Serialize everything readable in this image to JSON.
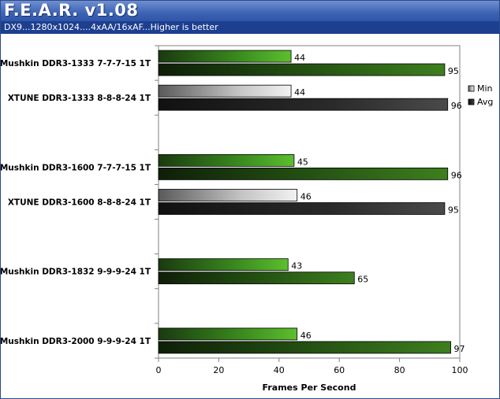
{
  "header": {
    "title": "F.E.A.R. v1.08",
    "subtitle": "DX9...1280x1024....4xAA/16xAF...Higher is better"
  },
  "colors": {
    "title_bar": "#3d63b5",
    "subtitle_bar": "#1d3f8f",
    "mushkin_bar": "#3a8a1e",
    "xtune_min_bar": "#d0d0d0",
    "xtune_avg_bar": "#2a2a2a"
  },
  "chart_data": {
    "type": "bar",
    "orientation": "horizontal",
    "title": "F.E.A.R. v1.08",
    "subtitle": "DX9...1280x1024....4xAA/16xAF...Higher is better",
    "xlabel": "Frames Per Second",
    "ylabel": "",
    "xlim": [
      0,
      100
    ],
    "x_ticks": [
      "0",
      "20",
      "40",
      "60",
      "80",
      "100"
    ],
    "grid": false,
    "legend": {
      "position": "right",
      "entries": [
        "Min",
        "Avg"
      ]
    },
    "categories": [
      "<Mushkin DDR3-1333 7-7-7-15 1T",
      "XTUNE DDR3-1333 8-8-8-24 1T",
      "",
      "<Mushkin DDR3-1600 7-7-7-15 1T",
      "XTUNE DDR3-1600 8-8-8-24 1T",
      "",
      "<Mushkin DDR3-1832 9-9-9-24 1T",
      "",
      "<Mushkin DDR3-2000 9-9-9-24 1T"
    ],
    "series": [
      {
        "name": "Min",
        "values": [
          44,
          44,
          null,
          45,
          46,
          null,
          43,
          null,
          46
        ]
      },
      {
        "name": "Avg",
        "values": [
          95,
          96,
          null,
          96,
          95,
          null,
          65,
          null,
          97
        ]
      }
    ],
    "bar_style": [
      "mushkin",
      "xtune",
      null,
      "mushkin",
      "xtune",
      null,
      "mushkin",
      null,
      "mushkin"
    ]
  }
}
